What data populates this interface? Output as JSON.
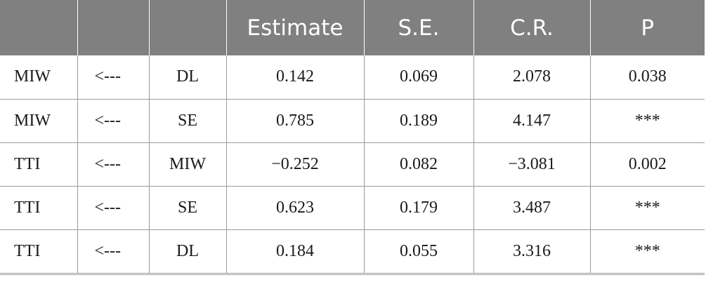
{
  "table": {
    "headers": [
      "",
      "",
      "",
      "Estimate",
      "S.E.",
      "C.R.",
      "P"
    ],
    "rows": [
      {
        "dependent": "MIW",
        "arrow": "<---",
        "predictor": "DL",
        "estimate": "0.142",
        "se": "0.069",
        "cr": "2.078",
        "p": "0.038"
      },
      {
        "dependent": "MIW",
        "arrow": "<---",
        "predictor": "SE",
        "estimate": "0.785",
        "se": "0.189",
        "cr": "4.147",
        "p": "***"
      },
      {
        "dependent": "TTI",
        "arrow": "<---",
        "predictor": "MIW",
        "estimate": "−0.252",
        "se": "0.082",
        "cr": "−3.081",
        "p": "0.002"
      },
      {
        "dependent": "TTI",
        "arrow": "<---",
        "predictor": "SE",
        "estimate": "0.623",
        "se": "0.179",
        "cr": "3.487",
        "p": "***"
      },
      {
        "dependent": "TTI",
        "arrow": "<---",
        "predictor": "DL",
        "estimate": "0.184",
        "se": "0.055",
        "cr": "3.316",
        "p": "***"
      }
    ]
  },
  "colors": {
    "header_bg": "#808080",
    "header_text": "#ffffff",
    "grid_line": "#9a9a9a",
    "body_text": "#1a1a1a"
  }
}
